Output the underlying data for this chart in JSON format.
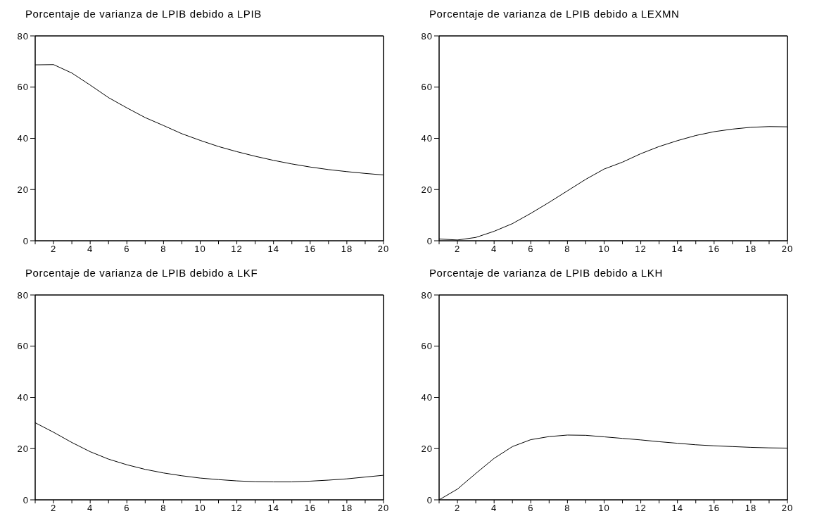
{
  "chart_data": [
    {
      "type": "line",
      "title": "Porcentaje de varianza de LPIB debido a LPIB",
      "x": [
        1,
        2,
        3,
        4,
        5,
        6,
        7,
        8,
        9,
        10,
        11,
        12,
        13,
        14,
        15,
        16,
        17,
        18,
        19,
        20
      ],
      "color": "#000000",
      "values": [
        68.7,
        68.8,
        65.5,
        60.8,
        55.9,
        51.9,
        48.1,
        45.0,
        41.8,
        39.2,
        36.8,
        34.8,
        33.0,
        31.4,
        30.0,
        28.8,
        27.8,
        27.0,
        26.3,
        25.7
      ],
      "xlim": [
        1,
        20
      ],
      "xticks": [
        {
          "value": 1,
          "label": null
        },
        2,
        {
          "value": 3,
          "label": null
        },
        4,
        {
          "value": 5,
          "label": null
        },
        6,
        {
          "value": 7,
          "label": null
        },
        8,
        {
          "value": 9,
          "label": null
        },
        10,
        {
          "value": 11,
          "label": null
        },
        12,
        {
          "value": 13,
          "label": null
        },
        14,
        {
          "value": 15,
          "label": null
        },
        16,
        {
          "value": 17,
          "label": null
        },
        18,
        {
          "value": 19,
          "label": null
        },
        20
      ],
      "ylim": [
        0,
        80
      ],
      "yticks": [
        0,
        20,
        40,
        60,
        80
      ]
    },
    {
      "type": "line",
      "title": "Porcentaje de varianza de LPIB debido a LEXMN",
      "x": [
        1,
        2,
        3,
        4,
        5,
        6,
        7,
        8,
        9,
        10,
        11,
        12,
        13,
        14,
        15,
        16,
        17,
        18,
        19,
        20
      ],
      "color": "#000000",
      "values": [
        0.7,
        0.3,
        1.3,
        3.7,
        6.7,
        10.7,
        15.0,
        19.5,
        24.0,
        28.0,
        30.7,
        34.0,
        36.8,
        39.1,
        41.1,
        42.6,
        43.6,
        44.3,
        44.6,
        44.5
      ],
      "xlim": [
        1,
        20
      ],
      "xticks": [
        {
          "value": 1,
          "label": null
        },
        2,
        {
          "value": 3,
          "label": null
        },
        4,
        {
          "value": 5,
          "label": null
        },
        6,
        {
          "value": 7,
          "label": null
        },
        8,
        {
          "value": 9,
          "label": null
        },
        10,
        {
          "value": 11,
          "label": null
        },
        12,
        {
          "value": 13,
          "label": null
        },
        14,
        {
          "value": 15,
          "label": null
        },
        16,
        {
          "value": 17,
          "label": null
        },
        18,
        {
          "value": 19,
          "label": null
        },
        20
      ],
      "ylim": [
        0,
        80
      ],
      "yticks": [
        0,
        20,
        40,
        60,
        80
      ]
    },
    {
      "type": "line",
      "title": "Porcentaje de varianza de LPIB debido a LKF",
      "x": [
        1,
        2,
        3,
        4,
        5,
        6,
        7,
        8,
        9,
        10,
        11,
        12,
        13,
        14,
        15,
        16,
        17,
        18,
        19,
        20
      ],
      "color": "#000000",
      "values": [
        30.1,
        26.4,
        22.4,
        18.8,
        15.9,
        13.7,
        11.9,
        10.5,
        9.4,
        8.5,
        7.9,
        7.4,
        7.1,
        7.0,
        7.0,
        7.3,
        7.7,
        8.2,
        8.9,
        9.6
      ],
      "xlim": [
        1,
        20
      ],
      "xticks": [
        {
          "value": 1,
          "label": null
        },
        2,
        {
          "value": 3,
          "label": null
        },
        4,
        {
          "value": 5,
          "label": null
        },
        6,
        {
          "value": 7,
          "label": null
        },
        8,
        {
          "value": 9,
          "label": null
        },
        10,
        {
          "value": 11,
          "label": null
        },
        12,
        {
          "value": 13,
          "label": null
        },
        14,
        {
          "value": 15,
          "label": null
        },
        16,
        {
          "value": 17,
          "label": null
        },
        18,
        {
          "value": 19,
          "label": null
        },
        20
      ],
      "ylim": [
        0,
        80
      ],
      "yticks": [
        0,
        20,
        40,
        60,
        80
      ]
    },
    {
      "type": "line",
      "title": "Porcentaje de varianza de LPIB debido a LKH",
      "x": [
        1,
        2,
        3,
        4,
        5,
        6,
        7,
        8,
        9,
        10,
        11,
        12,
        13,
        14,
        15,
        16,
        17,
        18,
        19,
        20
      ],
      "color": "#000000",
      "values": [
        0,
        4.2,
        10.3,
        16.2,
        20.8,
        23.5,
        24.7,
        25.3,
        25.2,
        24.6,
        24.0,
        23.4,
        22.7,
        22.1,
        21.5,
        21.1,
        20.8,
        20.5,
        20.3,
        20.2
      ],
      "xlim": [
        1,
        20
      ],
      "xticks": [
        {
          "value": 1,
          "label": null
        },
        2,
        {
          "value": 3,
          "label": null
        },
        4,
        {
          "value": 5,
          "label": null
        },
        6,
        {
          "value": 7,
          "label": null
        },
        8,
        {
          "value": 9,
          "label": null
        },
        10,
        {
          "value": 11,
          "label": null
        },
        12,
        {
          "value": 13,
          "label": null
        },
        14,
        {
          "value": 15,
          "label": null
        },
        16,
        {
          "value": 17,
          "label": null
        },
        18,
        {
          "value": 19,
          "label": null
        },
        20
      ],
      "ylim": [
        0,
        80
      ],
      "yticks": [
        0,
        20,
        40,
        60,
        80
      ]
    }
  ]
}
